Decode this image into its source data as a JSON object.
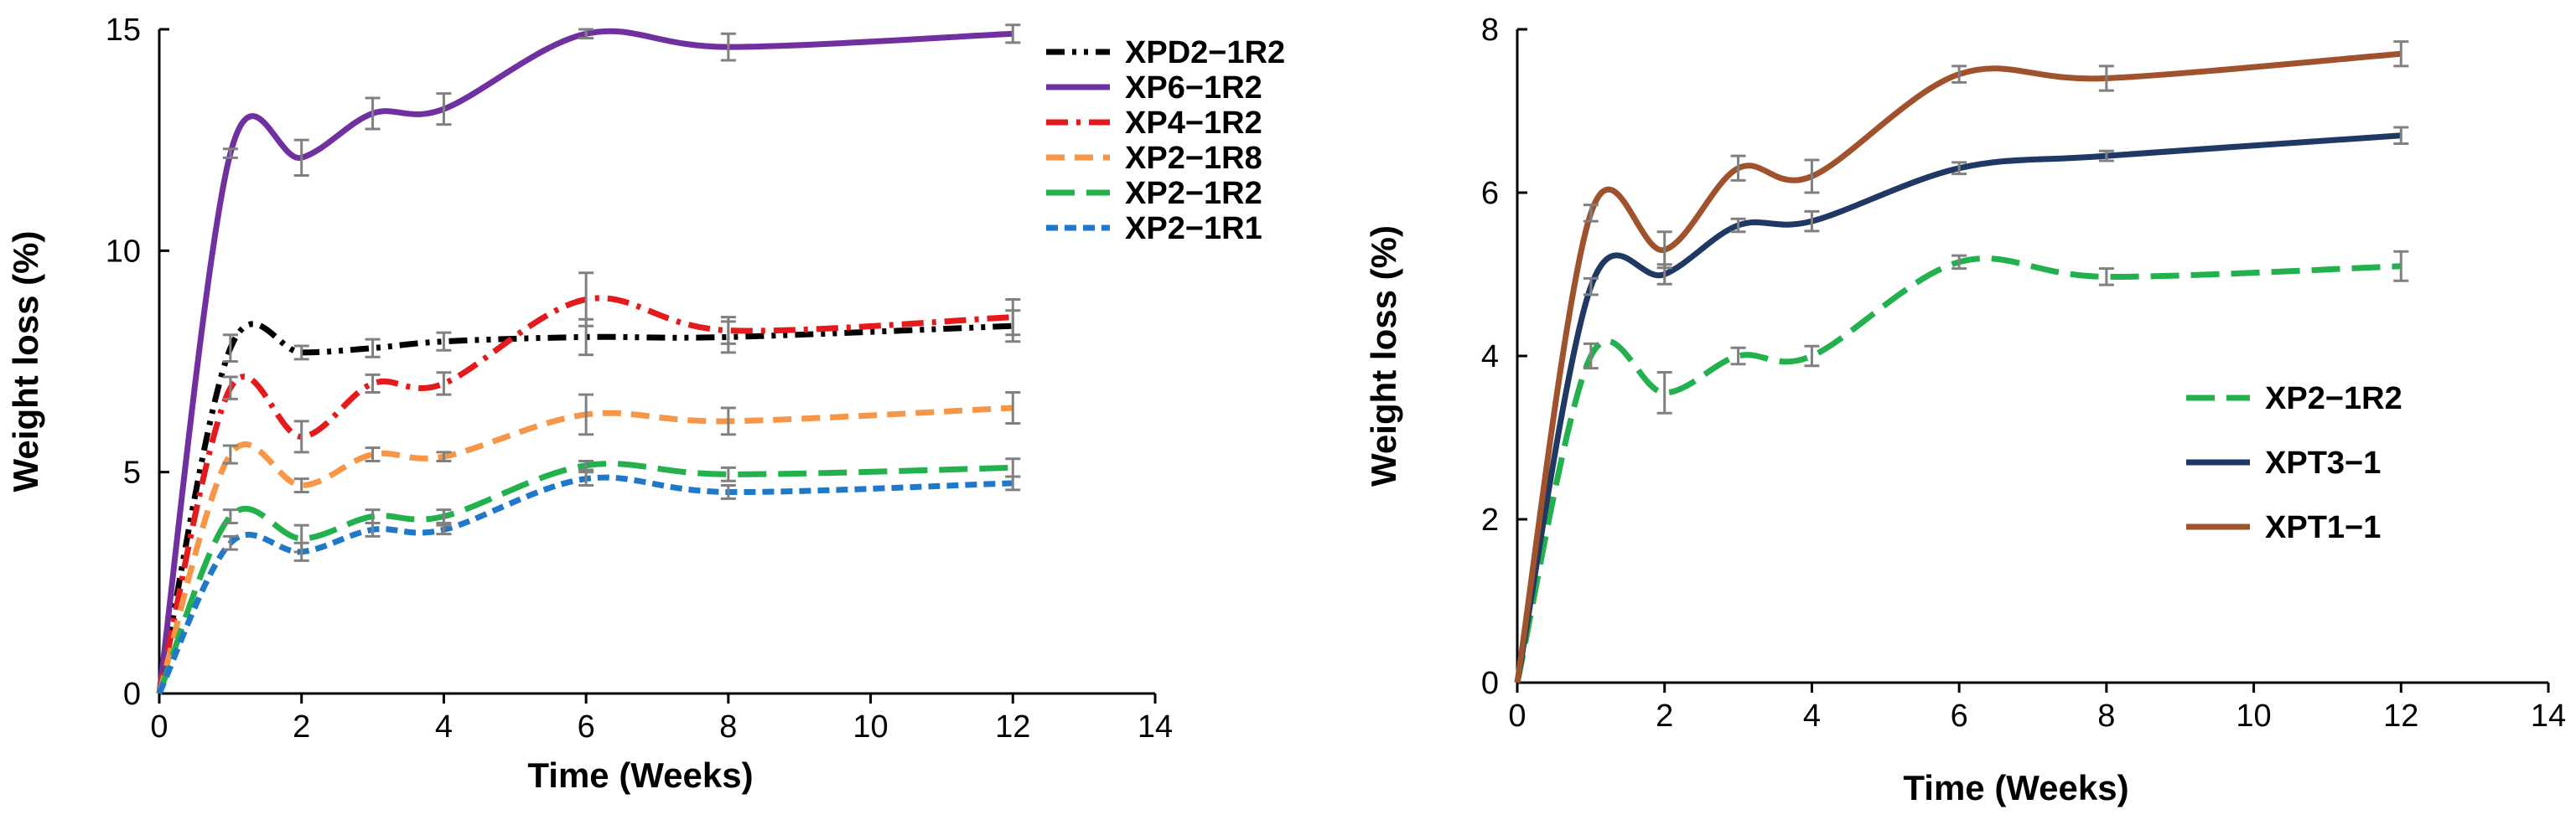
{
  "chart_data": [
    {
      "type": "line",
      "title": "",
      "xlabel": "Time (Weeks)",
      "ylabel": "Weight loss (%)",
      "xlim": [
        0,
        14
      ],
      "ylim": [
        0,
        15
      ],
      "xticks": [
        0,
        2,
        4,
        6,
        8,
        10,
        12,
        14
      ],
      "yticks": [
        0,
        5,
        10,
        15
      ],
      "grid": false,
      "legend_position": "top-right",
      "series": [
        {
          "name": "XPD2−1R2",
          "color": "#000000",
          "dash": "dashdotdot",
          "x": [
            0,
            1,
            2,
            3,
            4,
            6,
            8,
            12
          ],
          "y": [
            0,
            7.8,
            7.7,
            7.8,
            7.95,
            8.05,
            8.05,
            8.3
          ],
          "err": [
            0,
            0.3,
            0.15,
            0.2,
            0.2,
            0.4,
            0.35,
            0.35
          ]
        },
        {
          "name": "XP6−1R2",
          "color": "#7030A0",
          "dash": "solid",
          "x": [
            0,
            1,
            2,
            3,
            4,
            6,
            8,
            12
          ],
          "y": [
            0,
            12.2,
            12.1,
            13.1,
            13.2,
            14.9,
            14.6,
            14.9
          ],
          "err": [
            0,
            0.1,
            0.4,
            0.35,
            0.35,
            0.1,
            0.3,
            0.2
          ]
        },
        {
          "name": "XP4−1R2",
          "color": "#E41A1C",
          "dash": "dashdot",
          "x": [
            0,
            1,
            2,
            3,
            4,
            6,
            8,
            12
          ],
          "y": [
            0,
            6.9,
            5.8,
            7.0,
            7.0,
            8.9,
            8.2,
            8.5
          ],
          "err": [
            0,
            0.25,
            0.35,
            0.2,
            0.25,
            0.6,
            0.3,
            0.4
          ]
        },
        {
          "name": "XP2−1R8",
          "color": "#F79646",
          "dash": "dash",
          "x": [
            0,
            1,
            2,
            3,
            4,
            6,
            8,
            12
          ],
          "y": [
            0,
            5.4,
            4.7,
            5.4,
            5.35,
            6.3,
            6.15,
            6.45
          ],
          "err": [
            0,
            0.2,
            0.15,
            0.15,
            0.1,
            0.45,
            0.3,
            0.35
          ]
        },
        {
          "name": "XP2−1R2",
          "color": "#22B14C",
          "dash": "longdash",
          "x": [
            0,
            1,
            2,
            3,
            4,
            6,
            8,
            12
          ],
          "y": [
            0,
            4.0,
            3.5,
            4.0,
            4.0,
            5.15,
            4.95,
            5.1
          ],
          "err": [
            0,
            0.15,
            0.3,
            0.15,
            0.15,
            0.1,
            0.15,
            0.2
          ]
        },
        {
          "name": "XP2−1R1",
          "color": "#1F78C8",
          "dash": "shortdash",
          "x": [
            0,
            1,
            2,
            3,
            4,
            6,
            8,
            12
          ],
          "y": [
            0,
            3.4,
            3.2,
            3.7,
            3.7,
            4.85,
            4.55,
            4.75
          ],
          "err": [
            0,
            0.15,
            0.2,
            0.15,
            0.1,
            0.15,
            0.15,
            0.15
          ]
        }
      ]
    },
    {
      "type": "line",
      "title": "",
      "xlabel": "Time (Weeks)",
      "ylabel": "Weight loss (%)",
      "xlim": [
        0,
        14
      ],
      "ylim": [
        0,
        8
      ],
      "xticks": [
        0,
        2,
        4,
        6,
        8,
        10,
        12,
        14
      ],
      "yticks": [
        0,
        2,
        4,
        6,
        8
      ],
      "grid": false,
      "legend_position": "center-right",
      "series": [
        {
          "name": "XP2−1R2",
          "color": "#22B14C",
          "dash": "longdash",
          "x": [
            0,
            1,
            2,
            3,
            4,
            6,
            8,
            12
          ],
          "y": [
            0,
            4.0,
            3.55,
            4.0,
            4.0,
            5.15,
            4.97,
            5.1
          ],
          "err": [
            0,
            0.15,
            0.25,
            0.1,
            0.12,
            0.08,
            0.1,
            0.18
          ]
        },
        {
          "name": "XPT3−1",
          "color": "#1F3864",
          "dash": "solid",
          "x": [
            0,
            1,
            2,
            3,
            4,
            6,
            8,
            12
          ],
          "y": [
            0,
            4.85,
            5.0,
            5.6,
            5.65,
            6.3,
            6.45,
            6.7
          ],
          "err": [
            0,
            0.1,
            0.12,
            0.08,
            0.12,
            0.07,
            0.06,
            0.1
          ]
        },
        {
          "name": "XPT1−1",
          "color": "#A0522D",
          "dash": "solid",
          "x": [
            0,
            1,
            2,
            3,
            4,
            6,
            8,
            12
          ],
          "y": [
            0,
            5.75,
            5.3,
            6.3,
            6.2,
            7.45,
            7.4,
            7.7
          ],
          "err": [
            0,
            0.1,
            0.22,
            0.15,
            0.2,
            0.1,
            0.15,
            0.15
          ]
        }
      ]
    }
  ]
}
